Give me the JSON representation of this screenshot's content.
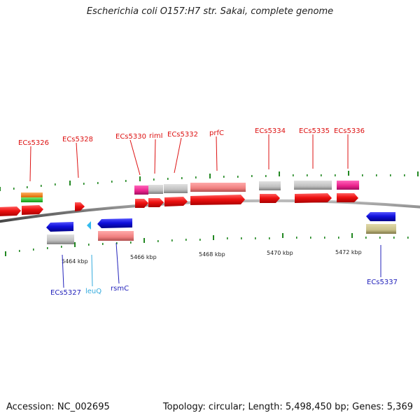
{
  "title": "Escherichia coli O157:H7 str. Sakai, complete genome",
  "footer": {
    "accession": "Accession: NC_002695",
    "summary": "Topology: circular; Length: 5,498,450 bp; Genes: 5,369"
  },
  "scale_labels": [
    "5464 kbp",
    "5466 kbp",
    "5468 kbp",
    "5470 kbp",
    "5472 kbp"
  ],
  "gene_labels_top": [
    "ECs5326",
    "ECs5328",
    "ECs5330",
    "rimI",
    "ECs5332",
    "prfC",
    "ECs5334",
    "ECs5335",
    "ECs5336"
  ],
  "gene_labels_bottom": [
    "ECs5327",
    "leuQ",
    "rsmC",
    "ECs5337"
  ],
  "colors": {
    "forward_cds": "#ee1111",
    "reverse_cds": "#1111dd",
    "gray_feature": "#c0c0c0",
    "pink_feature": "#e8208a",
    "salmon_feature": "#f08080",
    "olive_feature": "#c8c088",
    "orange_feature": "#ff8c1a",
    "green_feature": "#33cc33",
    "trna": "#33bbee",
    "tick": "#228822",
    "top_label": "#dd1111",
    "bottom_label": "#2222bb",
    "trna_label": "#33aadd"
  }
}
